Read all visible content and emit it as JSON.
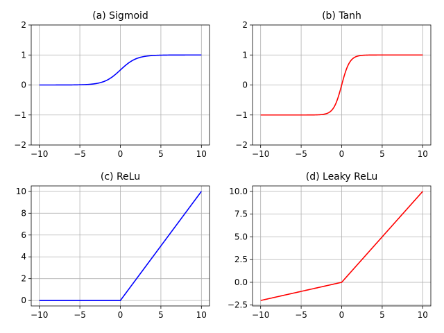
{
  "chart_data": [
    {
      "type": "line",
      "title": "(a) Sigmoid",
      "function": "sigmoid",
      "x_range": [
        -10,
        10
      ],
      "xlim": [
        -11,
        11
      ],
      "ylim": [
        -2,
        2
      ],
      "xticks": [
        -10,
        -5,
        0,
        5,
        10
      ],
      "yticks": [
        -2,
        -1,
        0,
        1,
        2
      ],
      "ytick_labels": [
        "−2",
        "−1",
        "0",
        "1",
        "2"
      ],
      "xtick_labels": [
        "−10",
        "−5",
        "0",
        "5",
        "10"
      ],
      "color": "#0000ff",
      "grid": true,
      "x": [
        -10,
        -5,
        -2,
        -1,
        0,
        1,
        2,
        5,
        10
      ],
      "y": [
        5e-05,
        0.0067,
        0.119,
        0.269,
        0.5,
        0.731,
        0.881,
        0.993,
        1.0
      ]
    },
    {
      "type": "line",
      "title": "(b) Tanh",
      "function": "tanh",
      "x_range": [
        -10,
        10
      ],
      "xlim": [
        -11,
        11
      ],
      "ylim": [
        -2,
        2
      ],
      "xticks": [
        -10,
        -5,
        0,
        5,
        10
      ],
      "yticks": [
        -2,
        -1,
        0,
        1,
        2
      ],
      "ytick_labels": [
        "−2",
        "−1",
        "0",
        "1",
        "2"
      ],
      "xtick_labels": [
        "−10",
        "−5",
        "0",
        "5",
        "10"
      ],
      "color": "#ff0000",
      "grid": true,
      "x": [
        -10,
        -2,
        -1,
        0,
        1,
        2,
        10
      ],
      "y": [
        -1.0,
        -0.964,
        -0.762,
        0,
        0.762,
        0.964,
        1.0
      ]
    },
    {
      "type": "line",
      "title": "(c) ReLu",
      "function": "relu",
      "x_range": [
        -10,
        10
      ],
      "xlim": [
        -11,
        11
      ],
      "ylim": [
        -0.5,
        10.5
      ],
      "xticks": [
        -10,
        -5,
        0,
        5,
        10
      ],
      "yticks": [
        0,
        2,
        4,
        6,
        8,
        10
      ],
      "ytick_labels": [
        "0",
        "2",
        "4",
        "6",
        "8",
        "10"
      ],
      "xtick_labels": [
        "−10",
        "−5",
        "0",
        "5",
        "10"
      ],
      "color": "#0000ff",
      "grid": true,
      "x": [
        -10,
        0,
        10
      ],
      "y": [
        0,
        0,
        10
      ]
    },
    {
      "type": "line",
      "title": "(d) Leaky ReLu",
      "function": "leaky_relu",
      "alpha": 0.2,
      "x_range": [
        -10,
        10
      ],
      "xlim": [
        -11,
        11
      ],
      "ylim": [
        -2.6,
        10.6
      ],
      "xticks": [
        -10,
        -5,
        0,
        5,
        10
      ],
      "yticks": [
        -2.5,
        0,
        2.5,
        5,
        7.5,
        10
      ],
      "ytick_labels": [
        "−2.5",
        "0.0",
        "2.5",
        "5.0",
        "7.5",
        "10.0"
      ],
      "xtick_labels": [
        "−10",
        "−5",
        "0",
        "5",
        "10"
      ],
      "color": "#ff0000",
      "grid": true,
      "x": [
        -10,
        0,
        10
      ],
      "y": [
        -2,
        0,
        10
      ]
    }
  ]
}
